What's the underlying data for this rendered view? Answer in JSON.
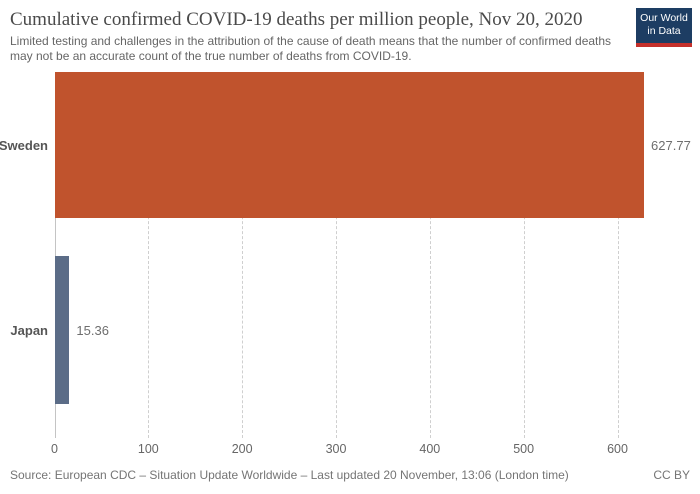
{
  "header": {
    "title": "Cumulative confirmed COVID-19 deaths per million people, Nov 20, 2020",
    "subtitle_line1": "Limited testing and challenges in the attribution of the cause of death means that the number of confirmed deaths",
    "subtitle_line2": "may not be an accurate count of the true number of deaths from COVID-19.",
    "logo_line1": "Our World",
    "logo_line2": "in Data"
  },
  "chart_data": {
    "type": "bar",
    "orientation": "horizontal",
    "title": "Cumulative confirmed COVID-19 deaths per million people, Nov 20, 2020",
    "categories": [
      "Sweden",
      "Japan"
    ],
    "values": [
      627.77,
      15.36
    ],
    "value_labels": [
      "627.77",
      "15.36"
    ],
    "bar_colors": [
      "#c0532d",
      "#5b6c87"
    ],
    "xlabel": "",
    "ylabel": "",
    "xlim": [
      0,
      650
    ],
    "x_ticks": [
      0,
      100,
      200,
      300,
      400,
      500,
      600
    ],
    "grid": "vertical-dashed",
    "legend": "none"
  },
  "footer": {
    "source": "Source: European CDC – Situation Update Worldwide – Last updated 20 November, 13:06 (London time)",
    "license": "CC BY"
  },
  "colors": {
    "bar_sweden": "#c0532d",
    "bar_japan": "#5b6c87",
    "logo_background": "#1d3d63",
    "logo_stripe": "#c5302b",
    "axis_line": "#c4c4c4",
    "gridline": "#cfcfcf",
    "title_text": "#4a4a4a",
    "subtitle_text": "#666666",
    "label_text": "#555555",
    "value_text": "#6e6e6e",
    "footer_text": "#757575"
  }
}
